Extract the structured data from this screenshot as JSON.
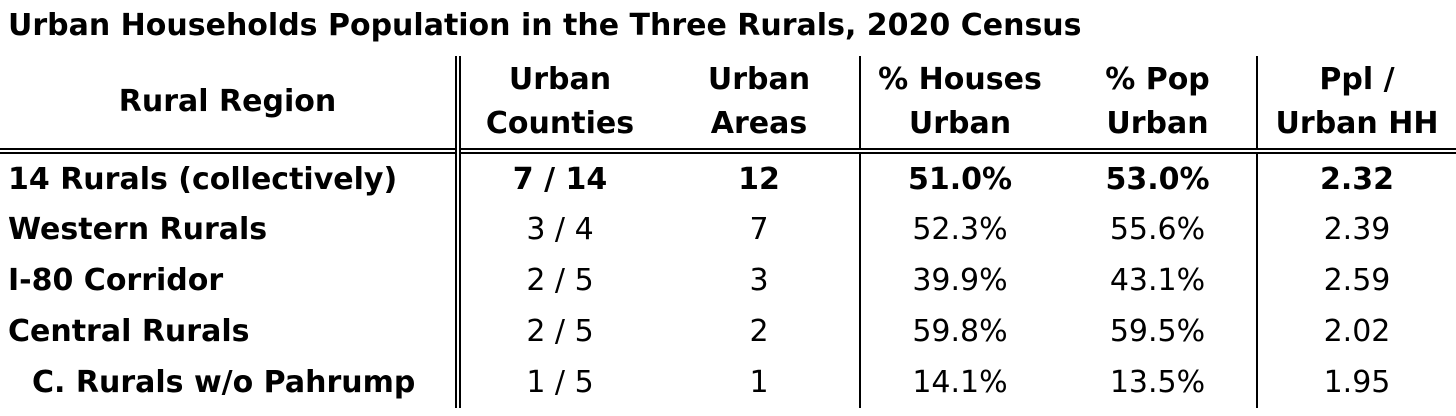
{
  "title": "Urban Households Population in the Three Rurals, 2020 Census",
  "table": {
    "headers": [
      {
        "line1": "Rural Region",
        "line2": ""
      },
      {
        "line1": "Urban",
        "line2": "Counties"
      },
      {
        "line1": "Urban",
        "line2": "Areas"
      },
      {
        "line1": "% Houses",
        "line2": "Urban"
      },
      {
        "line1": "% Pop",
        "line2": "Urban"
      },
      {
        "line1": "Ppl /",
        "line2": "Urban HH"
      }
    ],
    "rows": [
      {
        "region": "14 Rurals (collectively)",
        "counties": "7 / 14",
        "areas": "12",
        "houses": "51.0%",
        "pop": "53.0%",
        "ppl": "2.32"
      },
      {
        "region": "Western Rurals",
        "counties": "3 / 4",
        "areas": "7",
        "houses": "52.3%",
        "pop": "55.6%",
        "ppl": "2.39"
      },
      {
        "region": "I-80 Corridor",
        "counties": "2 / 5",
        "areas": "3",
        "houses": "39.9%",
        "pop": "43.1%",
        "ppl": "2.59"
      },
      {
        "region": "Central Rurals",
        "counties": "2 / 5",
        "areas": "2",
        "houses": "59.8%",
        "pop": "59.5%",
        "ppl": "2.02"
      },
      {
        "region": "C. Rurals w/o Pahrump",
        "counties": "1 / 5",
        "areas": "1",
        "houses": "14.1%",
        "pop": "13.5%",
        "ppl": "1.95"
      }
    ]
  }
}
